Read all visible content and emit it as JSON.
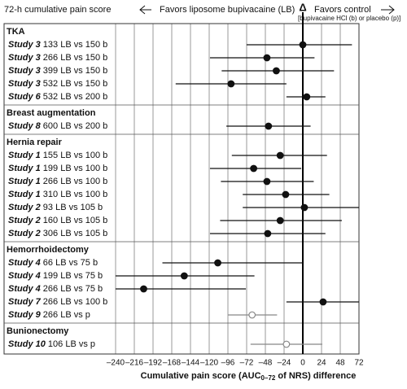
{
  "chart_data": {
    "type": "forest",
    "title": "72-h cumulative pain score",
    "favors_left": "Favors liposome bupivacaine (LB)",
    "delta": "Δ",
    "favors_right": "Favors control",
    "control_note": "[bupivacaine HCl (b) or placebo (p)]",
    "x_label": [
      "Cumulative pain score (AUC",
      "0–72",
      " of NRS) difference"
    ],
    "xlim": [
      -240,
      72
    ],
    "xticks": [
      {
        "value": -240,
        "label": "–240"
      },
      {
        "value": -216,
        "label": "–216"
      },
      {
        "value": -192,
        "label": "–192"
      },
      {
        "value": -168,
        "label": "–168"
      },
      {
        "value": -144,
        "label": "–144"
      },
      {
        "value": -120,
        "label": "–120"
      },
      {
        "value": -96,
        "label": "–96"
      },
      {
        "value": -72,
        "label": "–72"
      },
      {
        "value": -48,
        "label": "–48"
      },
      {
        "value": -24,
        "label": "–24"
      },
      0,
      24,
      48,
      72
    ],
    "reference": 0,
    "groups": [
      {
        "name": "TKA",
        "rows": [
          {
            "study": "Study 3",
            "comparison": " 133 LB vs 150 b",
            "estimate": 0,
            "low": -72,
            "high": 63,
            "open": false
          },
          {
            "study": "Study 3",
            "comparison": " 266 LB vs 150 b",
            "estimate": -46,
            "low": -119,
            "high": 15,
            "open": false
          },
          {
            "study": "Study 3",
            "comparison": " 399 LB vs 150 b",
            "estimate": -34,
            "low": -104,
            "high": 40,
            "open": false
          },
          {
            "study": "Study 3",
            "comparison": " 532 LB vs 150 b",
            "estimate": -92,
            "low": -163,
            "high": -21,
            "open": false
          },
          {
            "study": "Study 6",
            "comparison": " 532 LB vs 200 b",
            "estimate": 5,
            "low": -21,
            "high": 29,
            "open": false
          }
        ]
      },
      {
        "name": "Breast augmentation",
        "rows": [
          {
            "study": "Study 8",
            "comparison": " 600 LB vs 200 b",
            "estimate": -44,
            "low": -98,
            "high": 10,
            "open": false
          }
        ]
      },
      {
        "name": "Hernia repair",
        "rows": [
          {
            "study": "Study 1",
            "comparison": " 155 LB vs 100 b",
            "estimate": -29,
            "low": -91,
            "high": 31,
            "open": false
          },
          {
            "study": "Study 1",
            "comparison": " 199 LB vs 100 b",
            "estimate": -63,
            "low": -119,
            "high": -2,
            "open": false
          },
          {
            "study": "Study 1",
            "comparison": " 266 LB vs 100 b",
            "estimate": -46,
            "low": -105,
            "high": 14,
            "open": false
          },
          {
            "study": "Study 1",
            "comparison": " 310 LB vs 100 b",
            "estimate": -22,
            "low": -77,
            "high": 34,
            "open": false
          },
          {
            "study": "Study 2",
            "comparison": " 93 LB vs 105 b",
            "estimate": 2,
            "low": -77,
            "high": 72,
            "open": false
          },
          {
            "study": "Study 2",
            "comparison": " 160 LB vs 105 b",
            "estimate": -29,
            "low": -106,
            "high": 50,
            "open": false
          },
          {
            "study": "Study 2",
            "comparison": " 306 LB vs 105 b",
            "estimate": -45,
            "low": -119,
            "high": 29,
            "open": false
          }
        ]
      },
      {
        "name": "Hemorrhoidectomy",
        "rows": [
          {
            "study": "Study 4",
            "comparison": " 66 LB vs 75 b",
            "estimate": -109,
            "low": -180,
            "high": 0,
            "open": false
          },
          {
            "study": "Study 4",
            "comparison": " 199 LB vs 75 b",
            "estimate": -152,
            "low": -240,
            "high": -62,
            "open": false
          },
          {
            "study": "Study 4",
            "comparison": " 266 LB vs 75 b",
            "estimate": -204,
            "low": -240,
            "high": -73,
            "open": false
          },
          {
            "study": "Study 7",
            "comparison": " 266 LB vs 100 b",
            "estimate": 26,
            "low": -21,
            "high": 72,
            "open": false
          },
          {
            "study": "Study 9",
            "comparison": " 266 LB vs p",
            "estimate": -65,
            "low": -96,
            "high": -33,
            "open": true
          }
        ]
      },
      {
        "name": "Bunionectomy",
        "rows": [
          {
            "study": "Study 10",
            "comparison": " 106 LB vs p",
            "estimate": -21,
            "low": -67,
            "high": 25,
            "open": true
          }
        ]
      }
    ]
  }
}
